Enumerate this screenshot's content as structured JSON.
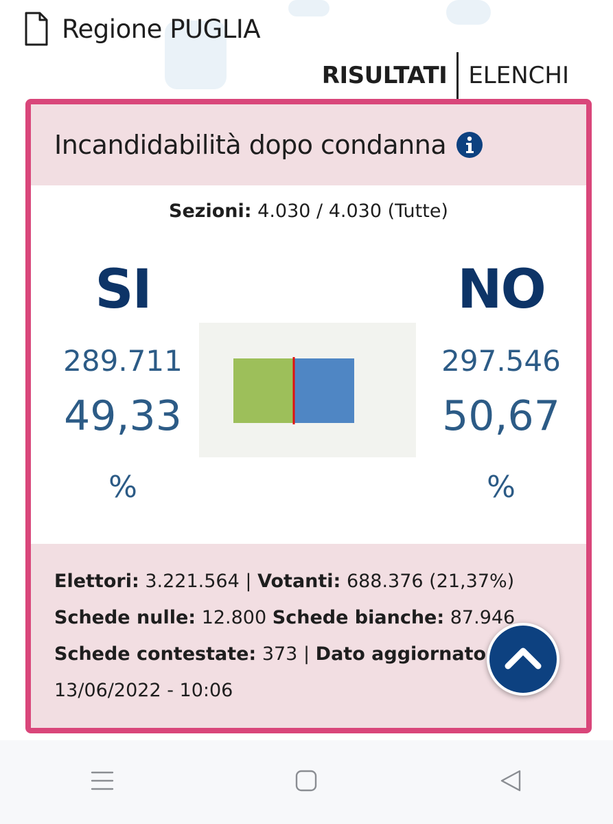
{
  "header": {
    "region_title": "Regione PUGLIA",
    "doc_icon": "document-icon"
  },
  "tabs": [
    {
      "label": "RISULTATI",
      "active": true
    },
    {
      "label": "ELENCHI",
      "active": false
    }
  ],
  "card": {
    "title": "Incandidabilità dopo condanna",
    "info_icon": "info-icon",
    "sezioni": {
      "label": "Sezioni:",
      "value": "4.030 / 4.030 (Tutte)"
    },
    "si": {
      "label": "SI",
      "votes": "289.711",
      "percent": "49,33",
      "percent_sign": "%"
    },
    "no": {
      "label": "NO",
      "votes": "297.546",
      "percent": "50,67",
      "percent_sign": "%"
    },
    "footer": {
      "elettori_label": "Elettori:",
      "elettori_value": "3.221.564",
      "sep1": "|",
      "votanti_label": "Votanti:",
      "votanti_value": "688.376 (21,37%)",
      "nulle_label": "Schede nulle:",
      "nulle_value": "12.800",
      "bianche_label": "Schede bianche:",
      "bianche_value": "87.946",
      "contestate_label": "Schede contestate:",
      "contestate_value": "373",
      "sep2": "|",
      "aggiornato_label": "Dato aggiornato al",
      "aggiornato_value": "13/06/2022 - 10:06"
    }
  },
  "chart_data": {
    "type": "bar",
    "orientation": "horizontal-stacked",
    "categories": [
      "SI",
      "NO"
    ],
    "values": [
      49.33,
      50.67
    ],
    "colors": {
      "SI": "#9dbf5a",
      "NO": "#4f86c4",
      "midline": "#e01010"
    },
    "midline_value": 50
  },
  "colors": {
    "accent": "#d9467a",
    "card_band": "#f2dee2",
    "brand_blue": "#0d3467",
    "value_blue": "#2c5b86"
  },
  "scroll_button": {
    "icon": "chevron-up-icon"
  },
  "navbar": {
    "icons": [
      "menu-icon",
      "home-square-icon",
      "back-triangle-icon"
    ]
  }
}
